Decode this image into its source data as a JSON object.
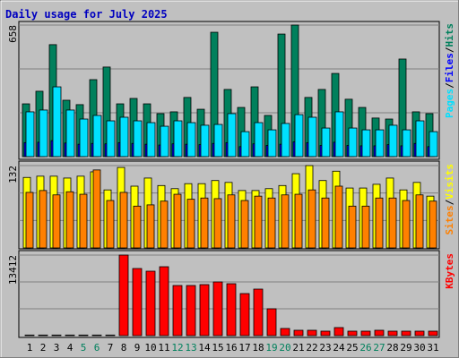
{
  "chart_data": [
    {
      "type": "bar",
      "title": "Daily usage for July 2025",
      "legend_separator": "/",
      "ylim": [
        0,
        658
      ],
      "yticks": [
        658
      ],
      "series": [
        {
          "name": "Hits",
          "color": "#00805c",
          "values": [
            264,
            327,
            560,
            282,
            260,
            385,
            448,
            264,
            291,
            264,
            215,
            224,
            296,
            237,
            622,
            336,
            246,
            349,
            206,
            613,
            658,
            296,
            336,
            416,
            287,
            246,
            193,
            188,
            488,
            224,
            215
          ]
        },
        {
          "name": "Files",
          "color": "#0000ff",
          "values": [
            70,
            72,
            80,
            68,
            62,
            66,
            64,
            70,
            66,
            62,
            58,
            64,
            62,
            60,
            66,
            70,
            50,
            64,
            56,
            62,
            74,
            70,
            56,
            72,
            56,
            54,
            54,
            60,
            54,
            66,
            50
          ]
        },
        {
          "name": "Pages",
          "color": "#00e0ff",
          "values": [
            224,
            233,
            349,
            233,
            188,
            206,
            179,
            197,
            179,
            170,
            152,
            179,
            170,
            157,
            161,
            215,
            125,
            170,
            134,
            166,
            210,
            197,
            143,
            224,
            143,
            134,
            134,
            157,
            134,
            179,
            125
          ]
        }
      ]
    },
    {
      "type": "bar",
      "ylim": [
        0,
        132
      ],
      "yticks": [
        132
      ],
      "series": [
        {
          "name": "Visits",
          "color": "#ffff00",
          "values": [
            113,
            115,
            115,
            112,
            115,
            122,
            93,
            129,
            99,
            112,
            100,
            95,
            103,
            103,
            108,
            105,
            92,
            92,
            95,
            100,
            119,
            132,
            108,
            123,
            96,
            96,
            102,
            112,
            93,
            105,
            83
          ]
        },
        {
          "name": "Sites",
          "color": "#ff8000",
          "values": [
            89,
            92,
            85,
            90,
            86,
            125,
            76,
            89,
            67,
            69,
            75,
            86,
            78,
            80,
            79,
            85,
            76,
            83,
            80,
            85,
            86,
            93,
            80,
            99,
            67,
            67,
            80,
            80,
            76,
            85,
            75
          ]
        }
      ]
    },
    {
      "type": "bar",
      "ylim": [
        0,
        13412
      ],
      "yticks": [
        13412
      ],
      "categories": [
        1,
        2,
        3,
        4,
        5,
        6,
        7,
        8,
        9,
        10,
        11,
        12,
        13,
        14,
        15,
        16,
        17,
        18,
        19,
        20,
        21,
        22,
        23,
        24,
        25,
        26,
        27,
        28,
        29,
        30,
        31
      ],
      "label_colors": [
        "#000000",
        "#000000",
        "#000000",
        "#000000",
        "#00805c",
        "#00805c",
        "#000000",
        "#000000",
        "#000000",
        "#000000",
        "#000000",
        "#00805c",
        "#00805c",
        "#000000",
        "#000000",
        "#000000",
        "#000000",
        "#000000",
        "#00805c",
        "#00805c",
        "#000000",
        "#000000",
        "#000000",
        "#000000",
        "#000000",
        "#00805c",
        "#00805c",
        "#000000",
        "#000000",
        "#000000",
        "#000000"
      ],
      "series": [
        {
          "name": "KBytes",
          "color": "#ff0000",
          "values": [
            100,
            100,
            100,
            100,
            100,
            100,
            100,
            13412,
            11175,
            10728,
            11473,
            8344,
            8344,
            8493,
            8940,
            8642,
            7003,
            7748,
            4470,
            1192,
            894,
            894,
            745,
            1341,
            745,
            745,
            894,
            745,
            745,
            745,
            745
          ]
        }
      ]
    }
  ]
}
